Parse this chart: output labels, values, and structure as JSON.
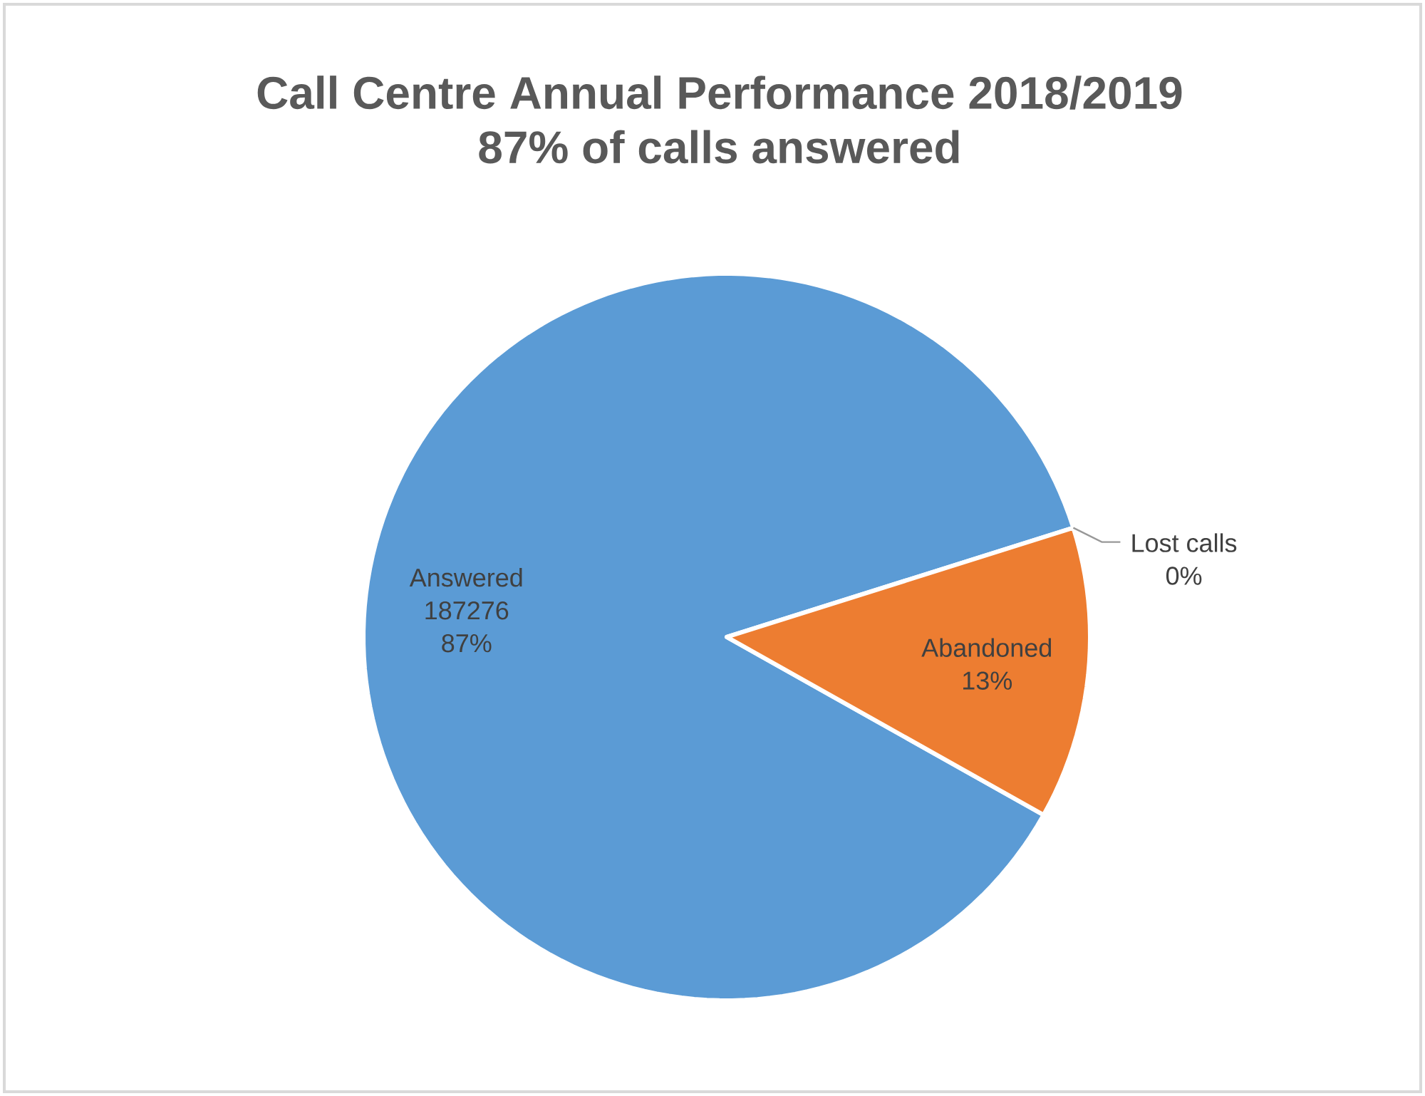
{
  "chart_data": {
    "type": "pie",
    "title": "Call Centre Annual Performance 2018/2019",
    "subtitle": "87% of calls answered",
    "categories": [
      "Answered",
      "Abandoned",
      "Lost calls"
    ],
    "values": [
      87,
      13,
      0
    ],
    "colors": [
      "#5b9bd5",
      "#ed7d31",
      "#a5a5a5"
    ],
    "value_labels": [
      "87%",
      "13%",
      "0%"
    ],
    "annotations": [
      {
        "text": "187276",
        "x": "Answered"
      }
    ]
  }
}
